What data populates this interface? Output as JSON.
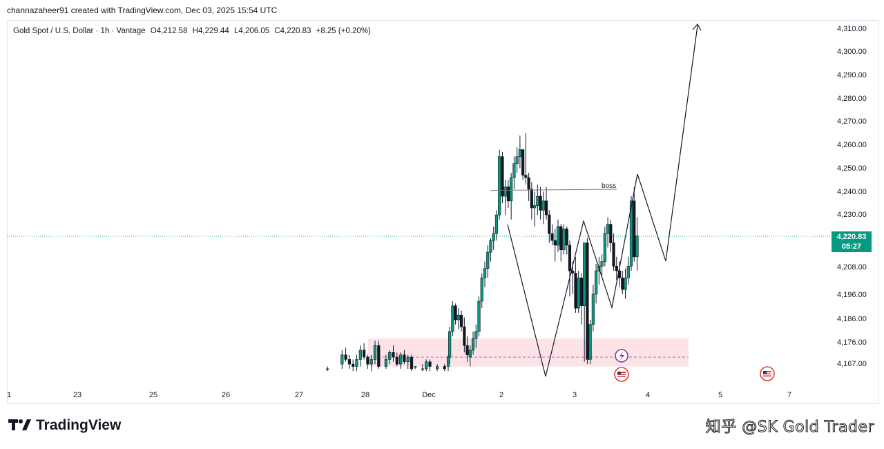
{
  "header": {
    "created_by": "channazaheer91 created with TradingView.com, Dec 03, 2025 15:54 UTC"
  },
  "legend": {
    "symbol": "Gold Spot / U.S. Dollar · 1h · Vantage",
    "open": "O4,212.58",
    "high": "H4,229.44",
    "low": "L4,206.05",
    "close": "C4,220.83",
    "change": "+8.25 (+0.20%)"
  },
  "price_tag": {
    "price": "4,220.83",
    "countdown": "05:27"
  },
  "footer": {
    "brand": "TradingView",
    "watermark": "知乎 @SK Gold Trader"
  },
  "colors": {
    "up": "#089981",
    "down": "#131722",
    "zone": "#fde3e6",
    "current_line": "#26a69a"
  },
  "chart_data": {
    "type": "candlestick",
    "symbol": "XAUUSD",
    "timeframe": "1h",
    "y_ticks": [
      "4,310.00",
      "4,300.00",
      "4,290.00",
      "4,280.00",
      "4,270.00",
      "4,260.00",
      "4,250.00",
      "4,240.00",
      "4,230.00",
      "4,208.00",
      "4,196.00",
      "4,186.00",
      "4,176.00",
      "4,167.00"
    ],
    "x_ticks": [
      "1",
      "23",
      "25",
      "26",
      "27",
      "28",
      "Dec",
      "2",
      "3",
      "4",
      "5",
      "7"
    ],
    "current_price": 4220.83,
    "annotations": [
      {
        "text": "boss"
      }
    ],
    "demand_zone": [
      4165,
      4177
    ],
    "zone_midline": 4169,
    "projection_path": [
      [
        4.0,
        4170
      ],
      [
        4.25,
        4207
      ],
      [
        4.5,
        4190
      ],
      [
        4.65,
        4247
      ],
      [
        4.88,
        4211
      ],
      [
        5.15,
        4311
      ]
    ],
    "candles": [
      [
        5.35,
        4164,
        4165,
        4163,
        4164
      ],
      [
        5.55,
        4166,
        4172,
        4164,
        4170
      ],
      [
        5.6,
        4170,
        4173,
        4167,
        4168
      ],
      [
        5.65,
        4168,
        4170,
        4164,
        4166
      ],
      [
        5.7,
        4166,
        4168,
        4163,
        4165
      ],
      [
        5.75,
        4165,
        4170,
        4163,
        4168
      ],
      [
        5.8,
        4168,
        4174,
        4165,
        4172
      ],
      [
        5.85,
        4172,
        4175,
        4168,
        4169
      ],
      [
        5.9,
        4169,
        4170,
        4164,
        4166
      ],
      [
        5.95,
        4166,
        4170,
        4163,
        4168
      ],
      [
        6.0,
        4168,
        4176,
        4166,
        4174
      ],
      [
        6.05,
        4174,
        4176,
        4164,
        4165
      ],
      [
        6.15,
        4165,
        4170,
        4164,
        4168
      ],
      [
        6.2,
        4168,
        4172,
        4166,
        4171
      ],
      [
        6.25,
        4171,
        4174,
        4167,
        4169
      ],
      [
        6.3,
        4169,
        4171,
        4165,
        4166
      ],
      [
        6.35,
        4166,
        4171,
        4164,
        4170
      ],
      [
        6.4,
        4170,
        4172,
        4166,
        4167
      ],
      [
        6.45,
        4167,
        4170,
        4164,
        4169
      ],
      [
        6.5,
        4169,
        4170,
        4163,
        4164
      ],
      [
        6.55,
        4165,
        4165,
        4164,
        4165
      ],
      [
        6.65,
        4164,
        4166,
        4163,
        4164
      ],
      [
        6.7,
        4164,
        4168,
        4163,
        4167
      ],
      [
        6.75,
        4167,
        4168,
        4163,
        4165
      ],
      [
        6.85,
        4164,
        4166,
        4163,
        4165
      ],
      [
        6.95,
        4165,
        4166,
        4163,
        4164
      ],
      [
        7.0,
        4165,
        4170,
        4163,
        4169
      ],
      [
        7.02,
        4169,
        4182,
        4166,
        4180
      ],
      [
        7.06,
        4180,
        4193,
        4178,
        4191
      ],
      [
        7.1,
        4191,
        4192,
        4183,
        4185
      ],
      [
        7.14,
        4185,
        4190,
        4181,
        4187
      ],
      [
        7.18,
        4187,
        4189,
        4180,
        4182
      ],
      [
        7.22,
        4182,
        4186,
        4171,
        4174
      ],
      [
        7.26,
        4174,
        4178,
        4167,
        4170
      ],
      [
        7.3,
        4169,
        4174,
        4165,
        4172
      ],
      [
        7.34,
        4172,
        4180,
        4170,
        4177
      ],
      [
        7.38,
        4177,
        4183,
        4173,
        4180
      ],
      [
        7.42,
        4180,
        4195,
        4178,
        4193
      ],
      [
        7.46,
        4193,
        4205,
        4190,
        4203
      ],
      [
        7.5,
        4203,
        4210,
        4199,
        4207
      ],
      [
        7.54,
        4207,
        4217,
        4203,
        4214
      ],
      [
        7.58,
        4214,
        4220,
        4210,
        4219
      ],
      [
        7.62,
        4219,
        4225,
        4215,
        4222
      ],
      [
        7.66,
        4222,
        4232,
        4219,
        4230
      ],
      [
        7.7,
        4230,
        4258,
        4228,
        4255
      ],
      [
        7.74,
        4255,
        4257,
        4235,
        4238
      ],
      [
        7.78,
        4238,
        4245,
        4230,
        4242
      ],
      [
        7.82,
        4242,
        4245,
        4233,
        4236
      ],
      [
        7.86,
        4236,
        4248,
        4228,
        4246
      ],
      [
        7.9,
        4246,
        4255,
        4241,
        4252
      ],
      [
        7.94,
        4252,
        4259,
        4248,
        4255
      ],
      [
        7.98,
        4255,
        4264,
        4250,
        4258
      ],
      [
        8.02,
        4258,
        4258,
        4245,
        4247
      ],
      [
        8.06,
        4247,
        4265,
        4243,
        4246
      ],
      [
        8.1,
        4246,
        4248,
        4236,
        4241
      ],
      [
        8.14,
        4241,
        4244,
        4228,
        4233
      ],
      [
        8.18,
        4233,
        4240,
        4225,
        4234
      ],
      [
        8.22,
        4234,
        4243,
        4230,
        4238
      ],
      [
        8.26,
        4238,
        4242,
        4228,
        4232
      ],
      [
        8.3,
        4232,
        4240,
        4226,
        4236
      ],
      [
        8.34,
        4236,
        4242,
        4228,
        4230
      ],
      [
        8.38,
        4230,
        4232,
        4218,
        4222
      ],
      [
        8.42,
        4222,
        4226,
        4217,
        4219
      ],
      [
        8.46,
        4219,
        4224,
        4210,
        4217
      ],
      [
        8.5,
        4217,
        4228,
        4214,
        4225
      ],
      [
        8.54,
        4225,
        4226,
        4210,
        4215
      ],
      [
        8.58,
        4215,
        4226,
        4213,
        4224
      ],
      [
        8.62,
        4224,
        4225,
        4213,
        4217
      ],
      [
        8.66,
        4217,
        4219,
        4195,
        4206
      ],
      [
        8.7,
        4206,
        4210,
        4196,
        4205
      ],
      [
        8.74,
        4205,
        4212,
        4188,
        4190
      ],
      [
        8.78,
        4190,
        4206,
        4188,
        4203
      ],
      [
        8.82,
        4203,
        4205,
        4183,
        4191
      ],
      [
        8.86,
        4191,
        4218,
        4167,
        4218
      ],
      [
        8.9,
        4218,
        4220,
        4166,
        4168
      ],
      [
        8.94,
        4168,
        4185,
        4166,
        4183
      ],
      [
        8.98,
        4183,
        4200,
        4180,
        4196
      ],
      [
        9.02,
        4196,
        4209,
        4192,
        4206
      ],
      [
        9.06,
        4206,
        4212,
        4200,
        4208
      ],
      [
        9.1,
        4208,
        4213,
        4204,
        4210
      ],
      [
        9.14,
        4210,
        4225,
        4208,
        4222
      ],
      [
        9.18,
        4222,
        4229,
        4216,
        4226
      ],
      [
        9.22,
        4226,
        4228,
        4214,
        4218
      ],
      [
        9.26,
        4218,
        4222,
        4206,
        4208
      ],
      [
        9.3,
        4208,
        4212,
        4202,
        4206
      ],
      [
        9.34,
        4206,
        4210,
        4199,
        4203
      ],
      [
        9.38,
        4203,
        4206,
        4196,
        4198
      ],
      [
        9.42,
        4198,
        4207,
        4194,
        4203
      ],
      [
        9.46,
        4203,
        4212,
        4200,
        4208
      ],
      [
        9.5,
        4208,
        4238,
        4206,
        4236
      ],
      [
        9.54,
        4236,
        4242,
        4210,
        4212
      ],
      [
        9.58,
        4212,
        4229,
        4206,
        4221
      ]
    ]
  }
}
